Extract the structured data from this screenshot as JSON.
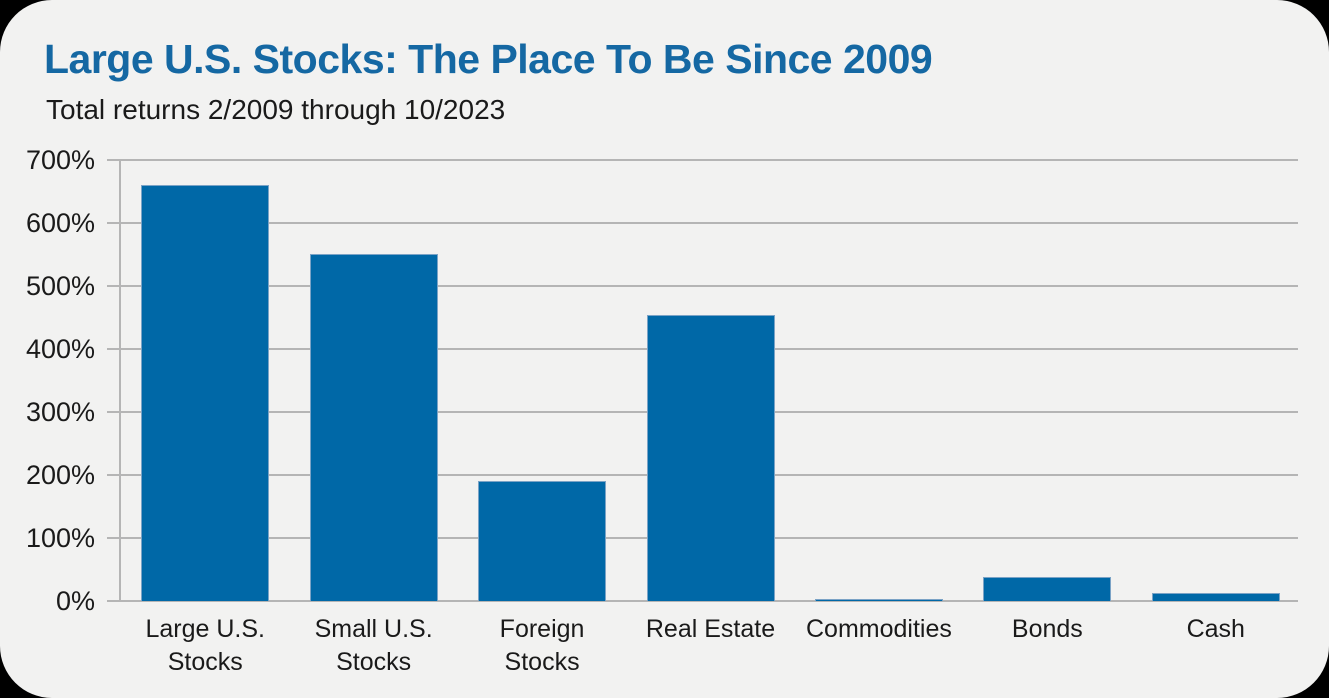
{
  "card": {
    "title": "Large U.S. Stocks: The Place To Be Since 2009",
    "subtitle": "Total returns 2/2009 through 10/2023"
  },
  "colors": {
    "bar": "#0068a7",
    "bar_edge": "#7ba3c6",
    "title_text": "#1568a3",
    "grid": "#b5b5b5",
    "background": "#f2f2f1",
    "outside": "#000000",
    "text": "#1a1a1a"
  },
  "chart_data": {
    "type": "bar",
    "title": "Large U.S. Stocks: The Place To Be Since 2009",
    "subtitle": "Total returns 2/2009 through 10/2023",
    "categories": [
      "Large U.S.\nStocks",
      "Small U.S.\nStocks",
      "Foreign\nStocks",
      "Real Estate",
      "Commodities",
      "Bonds",
      "Cash"
    ],
    "values": [
      660,
      551,
      190,
      454,
      1,
      38,
      12
    ],
    "unit": "%",
    "xlabel": "",
    "ylabel": "",
    "ylim": [
      0,
      700
    ],
    "ytick_step": 100,
    "ytick_labels": [
      "0%",
      "100%",
      "200%",
      "300%",
      "400%",
      "500%",
      "600%",
      "700%"
    ],
    "grid": true,
    "legend": false,
    "bar_color": "#0068a7"
  }
}
